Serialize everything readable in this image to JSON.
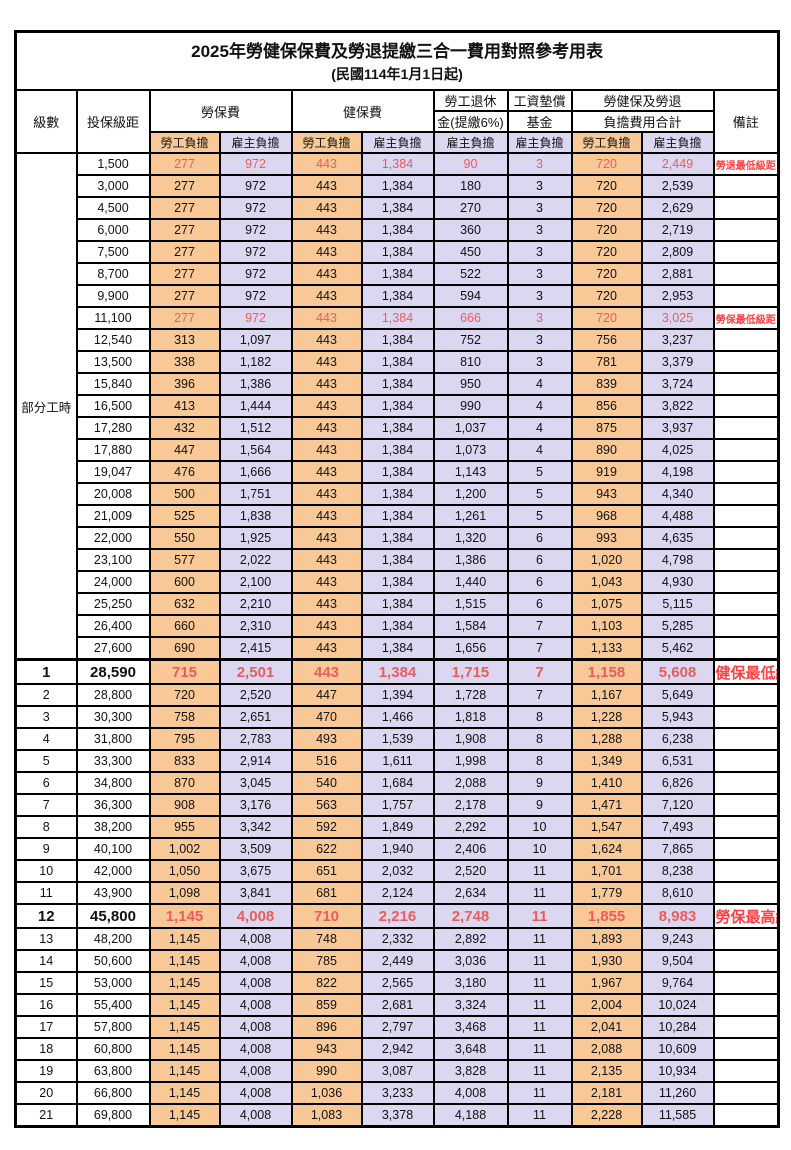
{
  "title": "2025年勞健保保費及勞退提繳三合一費用對照參考用表",
  "subtitle": "(民國114年1月1日起)",
  "header": {
    "level": "級數",
    "bracket": "投保級距",
    "labor_fee": "勞保費",
    "health_fee": "健保費",
    "pension_line1": "勞工退休",
    "pension_line2": "金(提繳6%)",
    "wage_fund_line1": "工資墊償",
    "wage_fund_line2": "基金",
    "total_line1": "勞健保及勞退",
    "total_line2": "負擔費用合計",
    "remark": "備註",
    "employee_share": "勞工負擔",
    "employer_share": "雇主負擔"
  },
  "part_time_label": "部分工時",
  "part_time_rowspan": 23,
  "colors": {
    "employee_bg": "#F8C996",
    "employer_bg": "#DBD7F0",
    "red_value": "#E85D5D",
    "red_remark": "#FF4040"
  },
  "rows": [
    {
      "level": "",
      "bracket": "1,500",
      "values": [
        "277",
        "972",
        "443",
        "1,384",
        "90",
        "3",
        "720",
        "2,449"
      ],
      "remark": "勞退最低級距",
      "red": true,
      "big": false,
      "thick_top": false
    },
    {
      "level": "",
      "bracket": "3,000",
      "values": [
        "277",
        "972",
        "443",
        "1,384",
        "180",
        "3",
        "720",
        "2,539"
      ],
      "remark": "",
      "red": false,
      "big": false,
      "thick_top": false
    },
    {
      "level": "",
      "bracket": "4,500",
      "values": [
        "277",
        "972",
        "443",
        "1,384",
        "270",
        "3",
        "720",
        "2,629"
      ],
      "remark": "",
      "red": false,
      "big": false,
      "thick_top": false
    },
    {
      "level": "",
      "bracket": "6,000",
      "values": [
        "277",
        "972",
        "443",
        "1,384",
        "360",
        "3",
        "720",
        "2,719"
      ],
      "remark": "",
      "red": false,
      "big": false,
      "thick_top": false
    },
    {
      "level": "",
      "bracket": "7,500",
      "values": [
        "277",
        "972",
        "443",
        "1,384",
        "450",
        "3",
        "720",
        "2,809"
      ],
      "remark": "",
      "red": false,
      "big": false,
      "thick_top": false
    },
    {
      "level": "",
      "bracket": "8,700",
      "values": [
        "277",
        "972",
        "443",
        "1,384",
        "522",
        "3",
        "720",
        "2,881"
      ],
      "remark": "",
      "red": false,
      "big": false,
      "thick_top": false
    },
    {
      "level": "",
      "bracket": "9,900",
      "values": [
        "277",
        "972",
        "443",
        "1,384",
        "594",
        "3",
        "720",
        "2,953"
      ],
      "remark": "",
      "red": false,
      "big": false,
      "thick_top": false
    },
    {
      "level": "",
      "bracket": "11,100",
      "values": [
        "277",
        "972",
        "443",
        "1,384",
        "666",
        "3",
        "720",
        "3,025"
      ],
      "remark": "勞保最低級距",
      "red": true,
      "big": false,
      "thick_top": false
    },
    {
      "level": "",
      "bracket": "12,540",
      "values": [
        "313",
        "1,097",
        "443",
        "1,384",
        "752",
        "3",
        "756",
        "3,237"
      ],
      "remark": "",
      "red": false,
      "big": false,
      "thick_top": false
    },
    {
      "level": "",
      "bracket": "13,500",
      "values": [
        "338",
        "1,182",
        "443",
        "1,384",
        "810",
        "3",
        "781",
        "3,379"
      ],
      "remark": "",
      "red": false,
      "big": false,
      "thick_top": false
    },
    {
      "level": "",
      "bracket": "15,840",
      "values": [
        "396",
        "1,386",
        "443",
        "1,384",
        "950",
        "4",
        "839",
        "3,724"
      ],
      "remark": "",
      "red": false,
      "big": false,
      "thick_top": false
    },
    {
      "level": "",
      "bracket": "16,500",
      "values": [
        "413",
        "1,444",
        "443",
        "1,384",
        "990",
        "4",
        "856",
        "3,822"
      ],
      "remark": "",
      "red": false,
      "big": false,
      "thick_top": false
    },
    {
      "level": "",
      "bracket": "17,280",
      "values": [
        "432",
        "1,512",
        "443",
        "1,384",
        "1,037",
        "4",
        "875",
        "3,937"
      ],
      "remark": "",
      "red": false,
      "big": false,
      "thick_top": false
    },
    {
      "level": "",
      "bracket": "17,880",
      "values": [
        "447",
        "1,564",
        "443",
        "1,384",
        "1,073",
        "4",
        "890",
        "4,025"
      ],
      "remark": "",
      "red": false,
      "big": false,
      "thick_top": false
    },
    {
      "level": "",
      "bracket": "19,047",
      "values": [
        "476",
        "1,666",
        "443",
        "1,384",
        "1,143",
        "5",
        "919",
        "4,198"
      ],
      "remark": "",
      "red": false,
      "big": false,
      "thick_top": false
    },
    {
      "level": "",
      "bracket": "20,008",
      "values": [
        "500",
        "1,751",
        "443",
        "1,384",
        "1,200",
        "5",
        "943",
        "4,340"
      ],
      "remark": "",
      "red": false,
      "big": false,
      "thick_top": false
    },
    {
      "level": "",
      "bracket": "21,009",
      "values": [
        "525",
        "1,838",
        "443",
        "1,384",
        "1,261",
        "5",
        "968",
        "4,488"
      ],
      "remark": "",
      "red": false,
      "big": false,
      "thick_top": false
    },
    {
      "level": "",
      "bracket": "22,000",
      "values": [
        "550",
        "1,925",
        "443",
        "1,384",
        "1,320",
        "6",
        "993",
        "4,635"
      ],
      "remark": "",
      "red": false,
      "big": false,
      "thick_top": false
    },
    {
      "level": "",
      "bracket": "23,100",
      "values": [
        "577",
        "2,022",
        "443",
        "1,384",
        "1,386",
        "6",
        "1,020",
        "4,798"
      ],
      "remark": "",
      "red": false,
      "big": false,
      "thick_top": false
    },
    {
      "level": "",
      "bracket": "24,000",
      "values": [
        "600",
        "2,100",
        "443",
        "1,384",
        "1,440",
        "6",
        "1,043",
        "4,930"
      ],
      "remark": "",
      "red": false,
      "big": false,
      "thick_top": false
    },
    {
      "level": "",
      "bracket": "25,250",
      "values": [
        "632",
        "2,210",
        "443",
        "1,384",
        "1,515",
        "6",
        "1,075",
        "5,115"
      ],
      "remark": "",
      "red": false,
      "big": false,
      "thick_top": false
    },
    {
      "level": "",
      "bracket": "26,400",
      "values": [
        "660",
        "2,310",
        "443",
        "1,384",
        "1,584",
        "7",
        "1,103",
        "5,285"
      ],
      "remark": "",
      "red": false,
      "big": false,
      "thick_top": false
    },
    {
      "level": "",
      "bracket": "27,600",
      "values": [
        "690",
        "2,415",
        "443",
        "1,384",
        "1,656",
        "7",
        "1,133",
        "5,462"
      ],
      "remark": "",
      "red": false,
      "big": false,
      "thick_top": false
    },
    {
      "level": "1",
      "bracket": "28,590",
      "values": [
        "715",
        "2,501",
        "443",
        "1,384",
        "1,715",
        "7",
        "1,158",
        "5,608"
      ],
      "remark": "健保最低級距",
      "red": true,
      "big": true,
      "thick_top": true
    },
    {
      "level": "2",
      "bracket": "28,800",
      "values": [
        "720",
        "2,520",
        "447",
        "1,394",
        "1,728",
        "7",
        "1,167",
        "5,649"
      ],
      "remark": "",
      "red": false,
      "big": false,
      "thick_top": false
    },
    {
      "level": "3",
      "bracket": "30,300",
      "values": [
        "758",
        "2,651",
        "470",
        "1,466",
        "1,818",
        "8",
        "1,228",
        "5,943"
      ],
      "remark": "",
      "red": false,
      "big": false,
      "thick_top": false
    },
    {
      "level": "4",
      "bracket": "31,800",
      "values": [
        "795",
        "2,783",
        "493",
        "1,539",
        "1,908",
        "8",
        "1,288",
        "6,238"
      ],
      "remark": "",
      "red": false,
      "big": false,
      "thick_top": false
    },
    {
      "level": "5",
      "bracket": "33,300",
      "values": [
        "833",
        "2,914",
        "516",
        "1,611",
        "1,998",
        "8",
        "1,349",
        "6,531"
      ],
      "remark": "",
      "red": false,
      "big": false,
      "thick_top": false
    },
    {
      "level": "6",
      "bracket": "34,800",
      "values": [
        "870",
        "3,045",
        "540",
        "1,684",
        "2,088",
        "9",
        "1,410",
        "6,826"
      ],
      "remark": "",
      "red": false,
      "big": false,
      "thick_top": false
    },
    {
      "level": "7",
      "bracket": "36,300",
      "values": [
        "908",
        "3,176",
        "563",
        "1,757",
        "2,178",
        "9",
        "1,471",
        "7,120"
      ],
      "remark": "",
      "red": false,
      "big": false,
      "thick_top": false
    },
    {
      "level": "8",
      "bracket": "38,200",
      "values": [
        "955",
        "3,342",
        "592",
        "1,849",
        "2,292",
        "10",
        "1,547",
        "7,493"
      ],
      "remark": "",
      "red": false,
      "big": false,
      "thick_top": false
    },
    {
      "level": "9",
      "bracket": "40,100",
      "values": [
        "1,002",
        "3,509",
        "622",
        "1,940",
        "2,406",
        "10",
        "1,624",
        "7,865"
      ],
      "remark": "",
      "red": false,
      "big": false,
      "thick_top": false
    },
    {
      "level": "10",
      "bracket": "42,000",
      "values": [
        "1,050",
        "3,675",
        "651",
        "2,032",
        "2,520",
        "11",
        "1,701",
        "8,238"
      ],
      "remark": "",
      "red": false,
      "big": false,
      "thick_top": false
    },
    {
      "level": "11",
      "bracket": "43,900",
      "values": [
        "1,098",
        "3,841",
        "681",
        "2,124",
        "2,634",
        "11",
        "1,779",
        "8,610"
      ],
      "remark": "",
      "red": false,
      "big": false,
      "thick_top": false
    },
    {
      "level": "12",
      "bracket": "45,800",
      "values": [
        "1,145",
        "4,008",
        "710",
        "2,216",
        "2,748",
        "11",
        "1,855",
        "8,983"
      ],
      "remark": "勞保最高級距",
      "red": true,
      "big": true,
      "thick_top": false
    },
    {
      "level": "13",
      "bracket": "48,200",
      "values": [
        "1,145",
        "4,008",
        "748",
        "2,332",
        "2,892",
        "11",
        "1,893",
        "9,243"
      ],
      "remark": "",
      "red": false,
      "big": false,
      "thick_top": false
    },
    {
      "level": "14",
      "bracket": "50,600",
      "values": [
        "1,145",
        "4,008",
        "785",
        "2,449",
        "3,036",
        "11",
        "1,930",
        "9,504"
      ],
      "remark": "",
      "red": false,
      "big": false,
      "thick_top": false
    },
    {
      "level": "15",
      "bracket": "53,000",
      "values": [
        "1,145",
        "4,008",
        "822",
        "2,565",
        "3,180",
        "11",
        "1,967",
        "9,764"
      ],
      "remark": "",
      "red": false,
      "big": false,
      "thick_top": false
    },
    {
      "level": "16",
      "bracket": "55,400",
      "values": [
        "1,145",
        "4,008",
        "859",
        "2,681",
        "3,324",
        "11",
        "2,004",
        "10,024"
      ],
      "remark": "",
      "red": false,
      "big": false,
      "thick_top": false
    },
    {
      "level": "17",
      "bracket": "57,800",
      "values": [
        "1,145",
        "4,008",
        "896",
        "2,797",
        "3,468",
        "11",
        "2,041",
        "10,284"
      ],
      "remark": "",
      "red": false,
      "big": false,
      "thick_top": false
    },
    {
      "level": "18",
      "bracket": "60,800",
      "values": [
        "1,145",
        "4,008",
        "943",
        "2,942",
        "3,648",
        "11",
        "2,088",
        "10,609"
      ],
      "remark": "",
      "red": false,
      "big": false,
      "thick_top": false
    },
    {
      "level": "19",
      "bracket": "63,800",
      "values": [
        "1,145",
        "4,008",
        "990",
        "3,087",
        "3,828",
        "11",
        "2,135",
        "10,934"
      ],
      "remark": "",
      "red": false,
      "big": false,
      "thick_top": false
    },
    {
      "level": "20",
      "bracket": "66,800",
      "values": [
        "1,145",
        "4,008",
        "1,036",
        "3,233",
        "4,008",
        "11",
        "2,181",
        "11,260"
      ],
      "remark": "",
      "red": false,
      "big": false,
      "thick_top": false
    },
    {
      "level": "21",
      "bracket": "69,800",
      "values": [
        "1,145",
        "4,008",
        "1,083",
        "3,378",
        "4,188",
        "11",
        "2,228",
        "11,585"
      ],
      "remark": "",
      "red": false,
      "big": false,
      "thick_top": false
    }
  ]
}
